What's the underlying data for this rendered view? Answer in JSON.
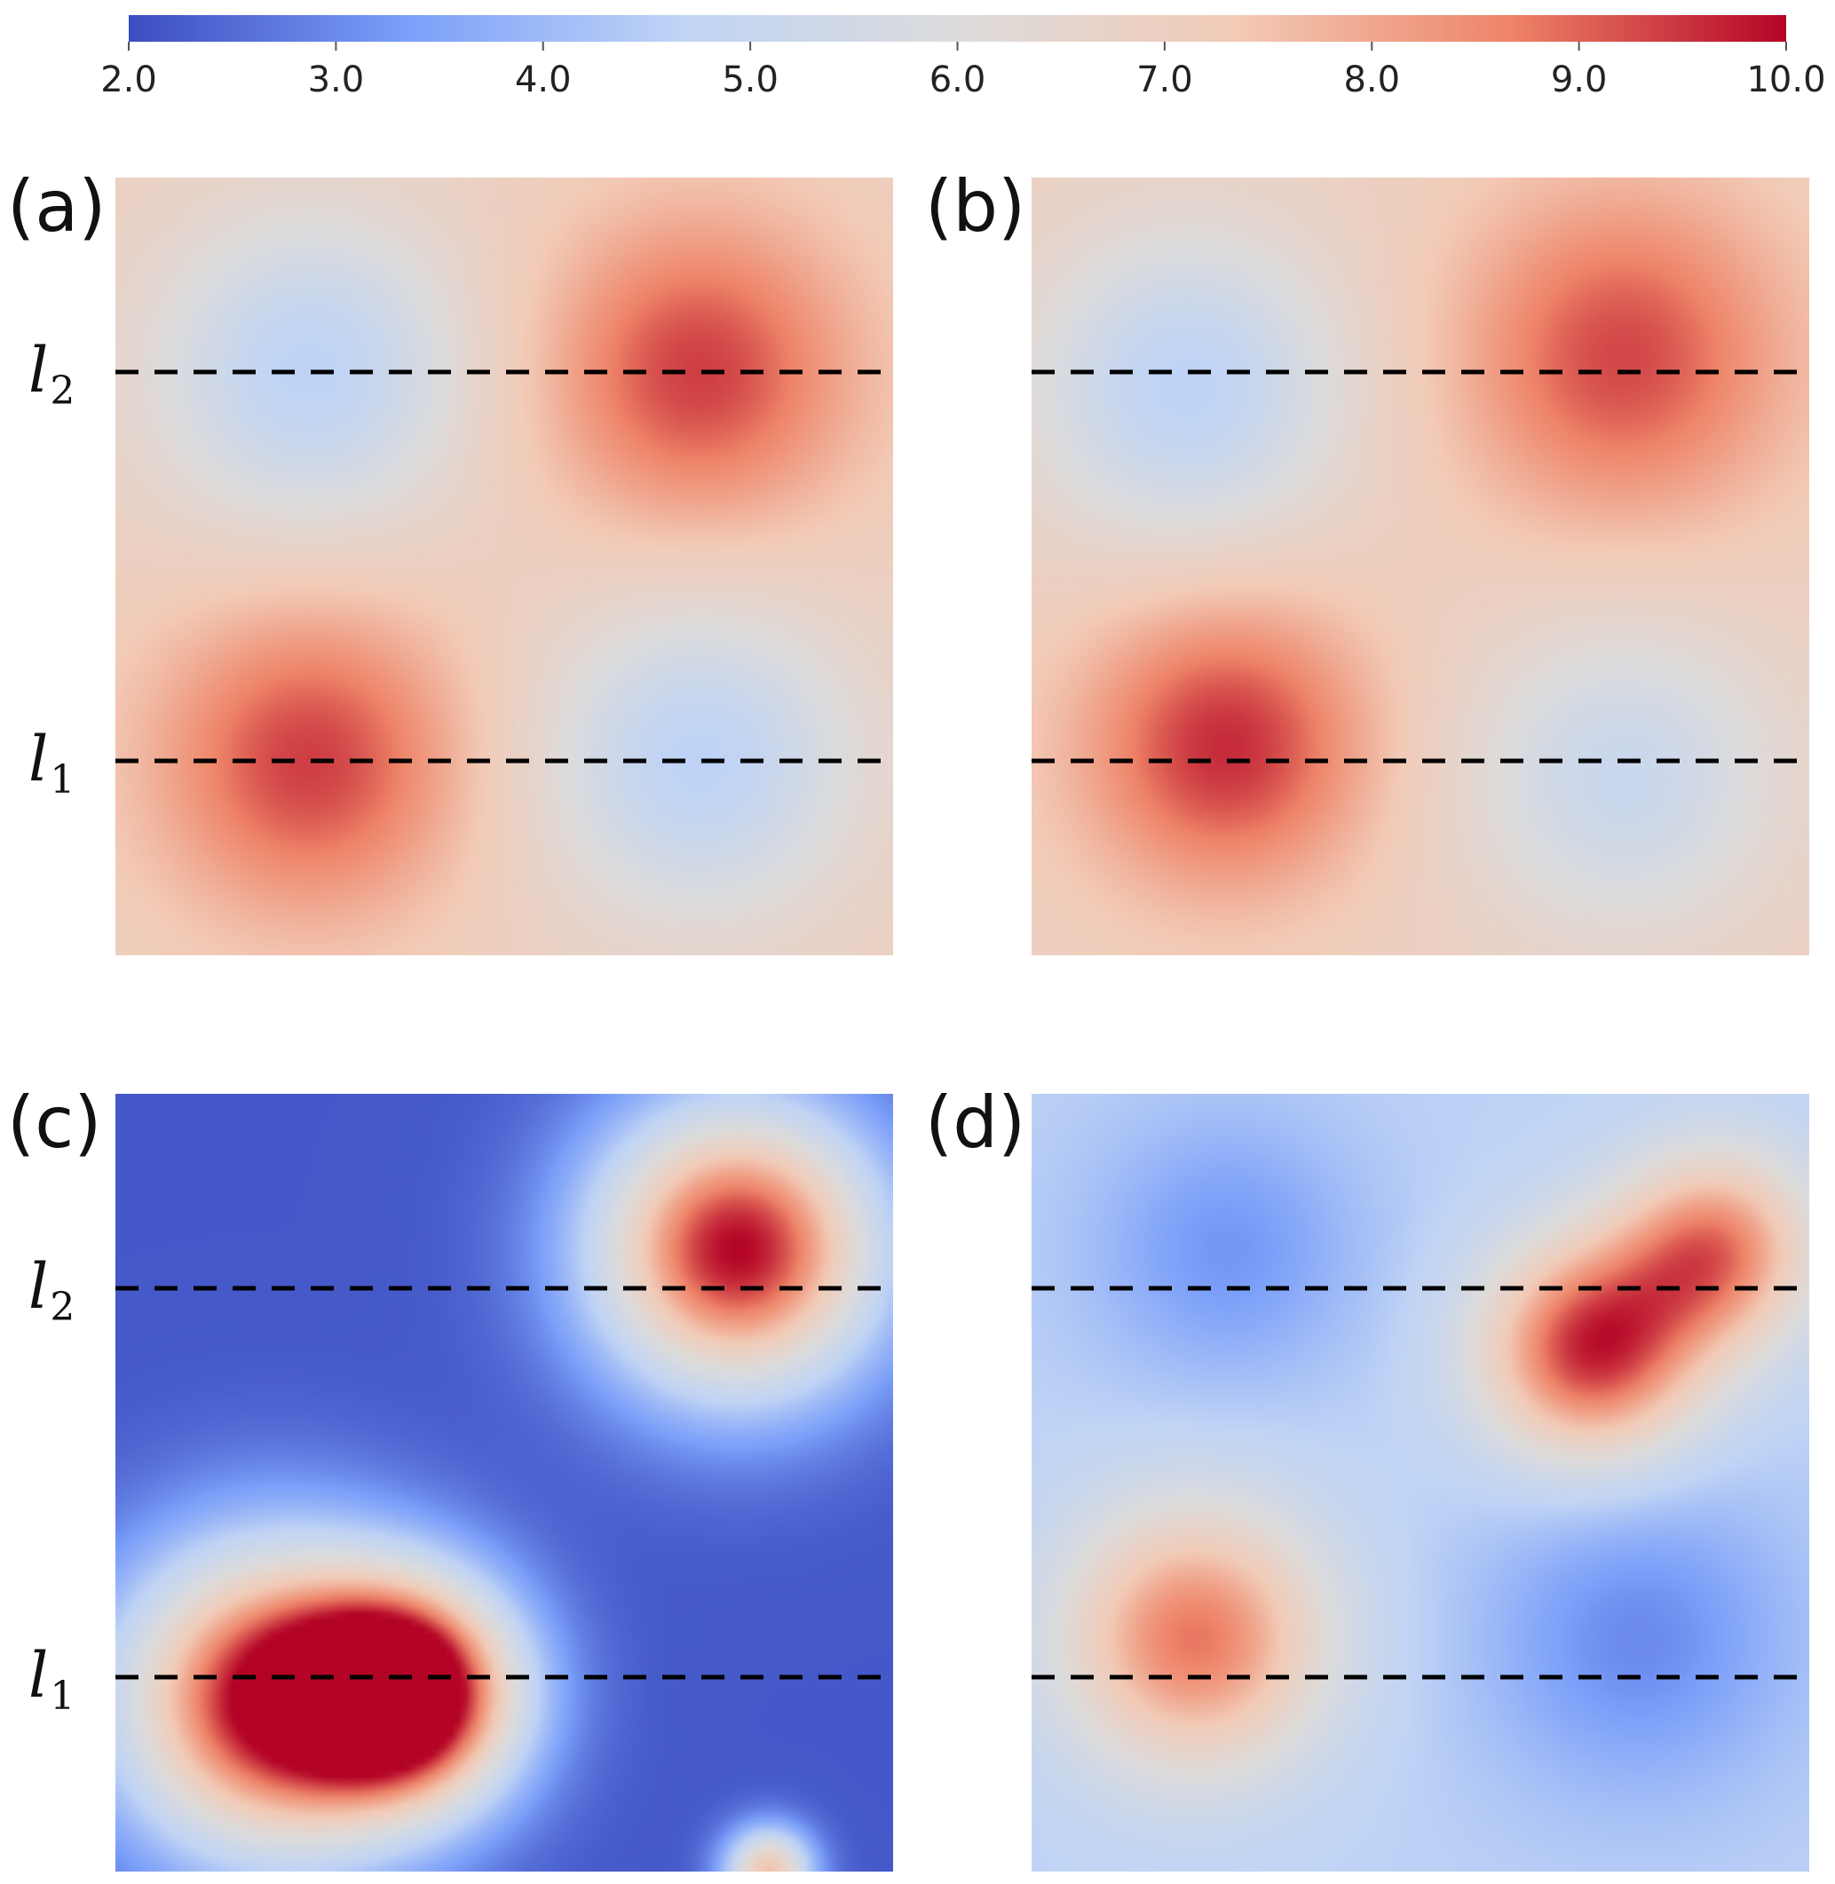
{
  "chart_data": {
    "type": "heatmap",
    "colorbar": {
      "min": 2.0,
      "max": 10.0,
      "ticks": [
        "2.0",
        "3.0",
        "4.0",
        "5.0",
        "6.0",
        "7.0",
        "8.0",
        "9.0",
        "10.0"
      ],
      "colormap": "cool-to-warm",
      "stops": [
        "#3b4cc0",
        "#7b9ff9",
        "#c0d4f5",
        "#dddcdc",
        "#f2cbb7",
        "#ee8468",
        "#b40426"
      ],
      "placement": "top"
    },
    "panels": [
      {
        "label": "(a)",
        "background_value": 7.0,
        "field": [
          {
            "x": 0.25,
            "y": 0.25,
            "value": 4.6,
            "sigma": 0.14
          },
          {
            "x": 0.75,
            "y": 0.25,
            "value": 9.4,
            "sigma": 0.14
          },
          {
            "x": 0.25,
            "y": 0.75,
            "value": 9.4,
            "sigma": 0.14
          },
          {
            "x": 0.75,
            "y": 0.75,
            "value": 4.6,
            "sigma": 0.14
          }
        ],
        "lines": [
          {
            "name": "l",
            "subscript": "2",
            "y": 0.25
          },
          {
            "name": "l",
            "subscript": "1",
            "y": 0.75
          }
        ]
      },
      {
        "label": "(b)",
        "background_value": 7.0,
        "field": [
          {
            "x": 0.2,
            "y": 0.27,
            "value": 4.6,
            "sigma": 0.14
          },
          {
            "x": 0.76,
            "y": 0.23,
            "value": 9.3,
            "sigma": 0.15
          },
          {
            "x": 0.25,
            "y": 0.73,
            "value": 9.6,
            "sigma": 0.13
          },
          {
            "x": 0.76,
            "y": 0.77,
            "value": 5.1,
            "sigma": 0.14
          }
        ],
        "lines": [
          {
            "name": "l",
            "subscript": "2",
            "y": 0.25
          },
          {
            "name": "l",
            "subscript": "1",
            "y": 0.75
          }
        ]
      },
      {
        "label": "(c)",
        "background_value": 2.2,
        "field": [
          {
            "x": 0.8,
            "y": 0.2,
            "value": 10.0,
            "sigma": 0.13
          },
          {
            "x": 0.2,
            "y": 0.78,
            "value": 10.0,
            "sigma": 0.14
          },
          {
            "x": 0.38,
            "y": 0.77,
            "value": 10.0,
            "sigma": 0.1
          },
          {
            "x": 0.84,
            "y": 1.0,
            "value": 7.5,
            "sigma": 0.04
          }
        ],
        "lines": [
          {
            "name": "l",
            "subscript": "2",
            "y": 0.25
          },
          {
            "name": "l",
            "subscript": "1",
            "y": 0.75
          }
        ]
      },
      {
        "label": "(d)",
        "background_value": 4.6,
        "field": [
          {
            "x": 0.25,
            "y": 0.2,
            "value": 3.2,
            "sigma": 0.12
          },
          {
            "x": 0.72,
            "y": 0.33,
            "value": 9.6,
            "sigma": 0.1
          },
          {
            "x": 0.88,
            "y": 0.2,
            "value": 8.6,
            "sigma": 0.09
          },
          {
            "x": 0.21,
            "y": 0.7,
            "value": 8.8,
            "sigma": 0.12
          },
          {
            "x": 0.78,
            "y": 0.7,
            "value": 3.0,
            "sigma": 0.14
          }
        ],
        "lines": [
          {
            "name": "l",
            "subscript": "2",
            "y": 0.25
          },
          {
            "name": "l",
            "subscript": "1",
            "y": 0.75
          }
        ]
      }
    ]
  }
}
